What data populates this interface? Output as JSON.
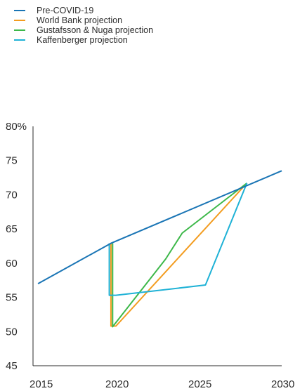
{
  "chart_data": {
    "type": "line",
    "title": "",
    "xlabel": "",
    "ylabel": "",
    "xlim": [
      2015,
      2030
    ],
    "ylim": [
      45,
      80
    ],
    "x_ticks": [
      {
        "value": 2015,
        "label": "2015"
      },
      {
        "value": 2020,
        "label": "2020"
      },
      {
        "value": 2025,
        "label": "2025"
      },
      {
        "value": 2030,
        "label": "2030"
      }
    ],
    "y_ticks": [
      {
        "value": 80,
        "label": "80%"
      },
      {
        "value": 75,
        "label": "75"
      },
      {
        "value": 70,
        "label": "70"
      },
      {
        "value": 65,
        "label": "65"
      },
      {
        "value": 60,
        "label": "60"
      },
      {
        "value": 55,
        "label": "55"
      },
      {
        "value": 50,
        "label": "50"
      },
      {
        "value": 45,
        "label": "45"
      }
    ],
    "grid": false,
    "legend_position": "top-left",
    "series": [
      {
        "name": "Pre-COVID-19",
        "color": "#1a75b5",
        "points": [
          [
            2015.3,
            57.0
          ],
          [
            2019.7,
            62.9
          ],
          [
            2030,
            73.5
          ]
        ]
      },
      {
        "name": "World Bank projection",
        "color": "#f39c1f",
        "points": [
          [
            2019.7,
            62.9
          ],
          [
            2019.7,
            50.8
          ],
          [
            2020.0,
            50.8
          ],
          [
            2027.9,
            71.7
          ]
        ]
      },
      {
        "name": "Gustafsson & Nuga projection",
        "color": "#3db84a",
        "points": [
          [
            2019.8,
            62.9
          ],
          [
            2019.8,
            50.7
          ],
          [
            2023.0,
            60.6
          ],
          [
            2024.0,
            64.4
          ],
          [
            2027.9,
            71.7
          ]
        ]
      },
      {
        "name": "Kaffenberger projection",
        "color": "#1fb2d6",
        "points": [
          [
            2019.6,
            62.9
          ],
          [
            2019.6,
            55.3
          ],
          [
            2020.0,
            55.3
          ],
          [
            2025.4,
            56.8
          ],
          [
            2027.9,
            71.7
          ]
        ]
      }
    ]
  }
}
